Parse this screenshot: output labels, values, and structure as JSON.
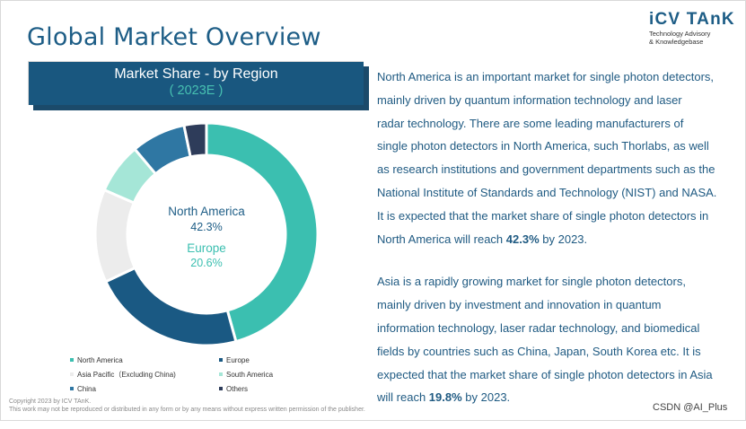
{
  "header": {
    "title": "Global Market Overview",
    "logo_main": "iCV TAnK",
    "logo_sub_1": "Technology Advisory",
    "logo_sub_2": "& Knowledgebase"
  },
  "chart_data": {
    "type": "pie",
    "title": "Market Share - by Region",
    "subtitle": "( 2023E )",
    "donut": true,
    "categories": [
      "North America",
      "Europe",
      "Asia Pacific (Excluding China)",
      "South America",
      "China",
      "Others"
    ],
    "values": [
      42.3,
      20.6,
      12.5,
      6.8,
      7.3,
      3.0
    ],
    "colors": [
      "#3bbfb0",
      "#1a5983",
      "#ececec",
      "#a5e6d7",
      "#2f77a3",
      "#2e3c5a"
    ],
    "center_labels": [
      {
        "name": "North America",
        "value": "42.3%",
        "color": "#1d5d86"
      },
      {
        "name": "Europe",
        "value": "20.6%",
        "color": "#3bbfb0"
      }
    ],
    "legend": [
      {
        "label": "North America",
        "color": "#3bbfb0"
      },
      {
        "label": "Europe",
        "color": "#1a5983"
      },
      {
        "label": "Asia Pacific（Excluding China)",
        "color": "#ececec"
      },
      {
        "label": "South America",
        "color": "#a5e6d7"
      },
      {
        "label": "China",
        "color": "#2f77a3"
      },
      {
        "label": "Others",
        "color": "#2e3c5a"
      }
    ],
    "legend_position": "bottom"
  },
  "text": {
    "para1": [
      {
        "t": "North America is an important market for single photon detectors,"
      },
      {
        "t": "mainly driven by quantum information technology and laser"
      },
      {
        "t": "radar technology. There are some leading manufacturers of"
      },
      {
        "t": "single photon detectors in North America, such Thorlabs, as well"
      },
      {
        "t": "as research institutions and government departments such as the"
      },
      {
        "t": "National Institute of Standards and Technology (NIST) and NASA."
      },
      {
        "t": "It is expected that the market share of single photon detectors in"
      },
      {
        "t": "North America will reach ",
        "b": "42.3%",
        "a": " by 2023."
      }
    ],
    "para2": [
      {
        "t": "Asia is a rapidly growing market for single photon detectors,"
      },
      {
        "t": "mainly driven by investment and innovation in quantum"
      },
      {
        "t": "information technology, laser radar technology, and biomedical"
      },
      {
        "t": "fields by countries such as China, Japan, South Korea etc. It is"
      },
      {
        "t": "expected that the market share of single photon detectors in Asia"
      },
      {
        "t": "will reach ",
        "b": "19.8%",
        "a": " by 2023."
      }
    ]
  },
  "footer": {
    "copyright_1": "Copyright  2023 by ICV TAnK.",
    "copyright_2": "This work may not be reproduced or distributed in any form or by any means without express written permission of the publisher.",
    "watermark": "CSDN @AI_Plus"
  }
}
